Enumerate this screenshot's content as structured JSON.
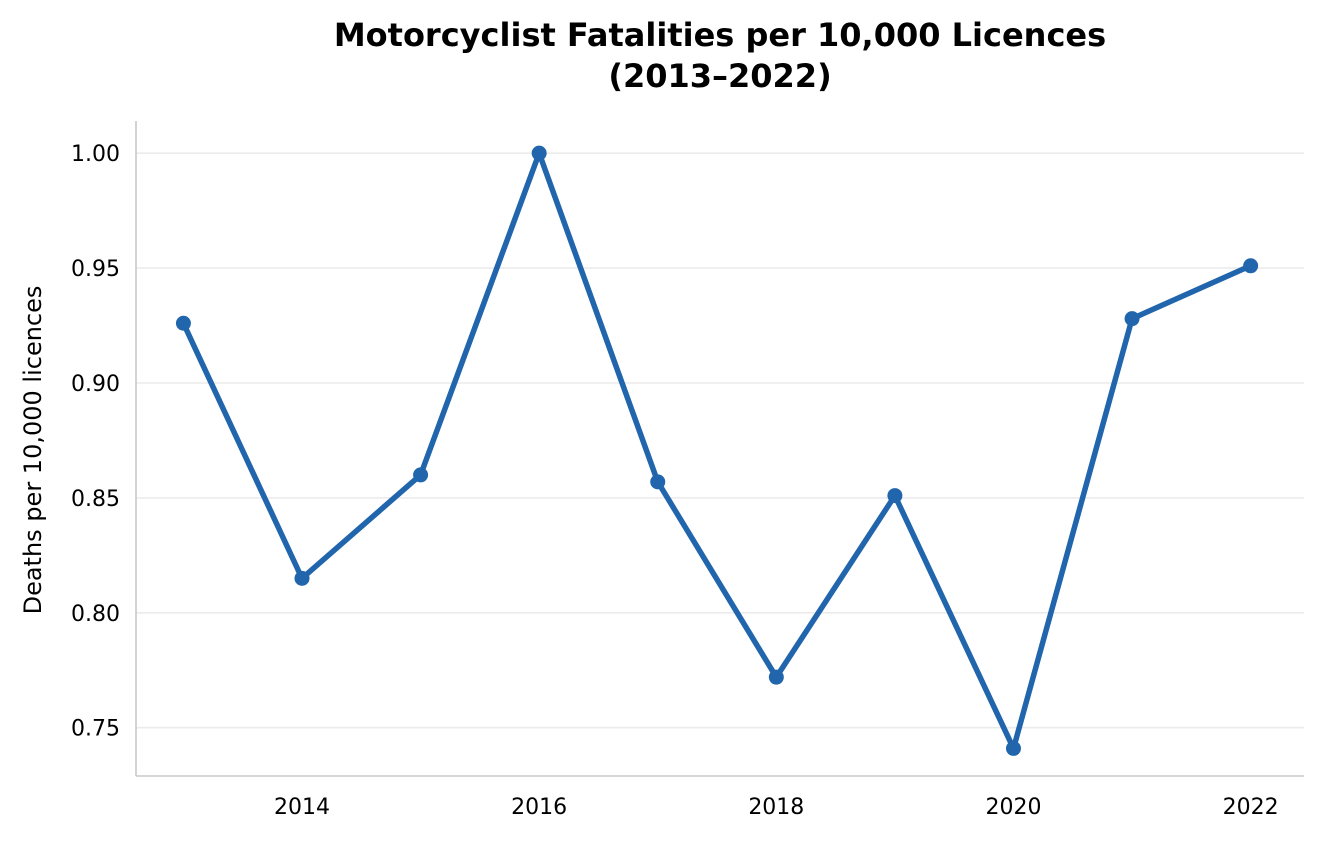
{
  "chart_data": {
    "type": "line",
    "title_line1": "Motorcyclist Fatalities per 10,000 Licences",
    "title_line2": "(2013–2022)",
    "xlabel": "",
    "ylabel": "Deaths per 10,000 licences",
    "x": [
      2013,
      2014,
      2015,
      2016,
      2017,
      2018,
      2019,
      2020,
      2021,
      2022
    ],
    "series": [
      {
        "values": [
          0.926,
          0.815,
          0.86,
          1.0,
          0.857,
          0.772,
          0.851,
          0.741,
          0.928,
          0.951
        ],
        "color": "#2166ac"
      }
    ],
    "xticks": [
      "2014",
      "2016",
      "2018",
      "2020",
      "2022"
    ],
    "yticks": [
      "0.75",
      "0.80",
      "0.85",
      "0.90",
      "0.95",
      "1.00"
    ],
    "xlim": [
      2012.6,
      2022.45
    ],
    "ylim": [
      0.729,
      1.014
    ],
    "grid": "horizontal",
    "legend": "none"
  }
}
